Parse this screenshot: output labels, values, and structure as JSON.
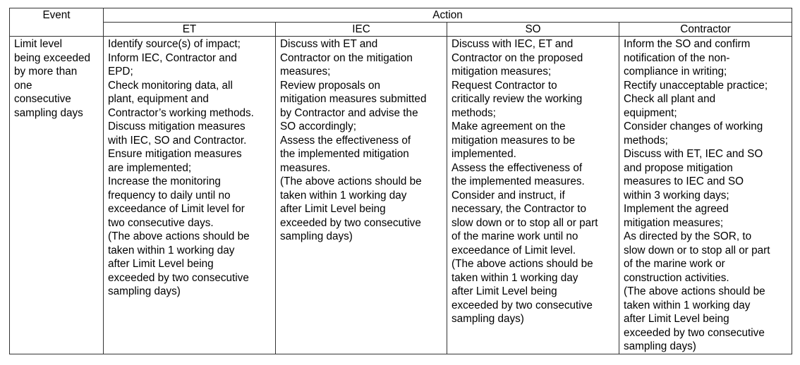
{
  "headers": {
    "event": "Event",
    "action": "Action",
    "et": "ET",
    "iec": "IEC",
    "so": "SO",
    "contractor": "Contractor"
  },
  "row": {
    "event": "Limit level\nbeing exceeded\nby more than\none\nconsecutive\nsampling days",
    "et": "Identify source(s) of impact;\nInform IEC, Contractor and\nEPD;\nCheck monitoring data, all\nplant, equipment and\nContractor’s working methods.\nDiscuss mitigation measures\nwith IEC, SO and Contractor.\nEnsure mitigation measures\nare implemented;\nIncrease the monitoring\nfrequency to daily until no\nexceedance of Limit level for\ntwo consecutive days.\n(The above actions should be\ntaken within 1 working day\nafter Limit Level being\nexceeded by two consecutive\nsampling days)",
    "iec": "Discuss with ET and\nContractor on the mitigation\nmeasures;\nReview proposals on\nmitigation measures submitted\nby Contractor and advise the\nSO accordingly;\nAssess the effectiveness of\nthe implemented mitigation\nmeasures.\n(The above actions should be\ntaken within 1 working day\nafter Limit Level being\nexceeded by two consecutive\nsampling days)",
    "so": "Discuss with IEC, ET and\nContractor on the proposed\nmitigation measures;\nRequest Contractor to\ncritically review the working\nmethods;\nMake agreement on the\nmitigation measures to be\nimplemented.\nAssess the effectiveness of\nthe implemented measures.\nConsider and instruct, if\nnecessary, the Contractor to\nslow down or to stop all or part\nof the marine work until no\nexceedance of Limit level.\n(The above actions should be\ntaken within 1 working day\nafter Limit Level being\nexceeded by two consecutive\nsampling days)",
    "contractor": "Inform the SO and confirm\nnotification of the non-\ncompliance in writing;\nRectify unacceptable practice;\nCheck all plant and\nequipment;\nConsider changes of working\nmethods;\nDiscuss with ET, IEC and SO\nand propose mitigation\nmeasures to IEC and SO\nwithin 3 working days;\nImplement the agreed\nmitigation measures;\nAs directed by the SOR, to\nslow down or to stop all or part\nof the marine work or\nconstruction activities.\n(The above actions should be\ntaken within 1 working day\nafter Limit Level being\nexceeded by two consecutive\nsampling days)"
  }
}
